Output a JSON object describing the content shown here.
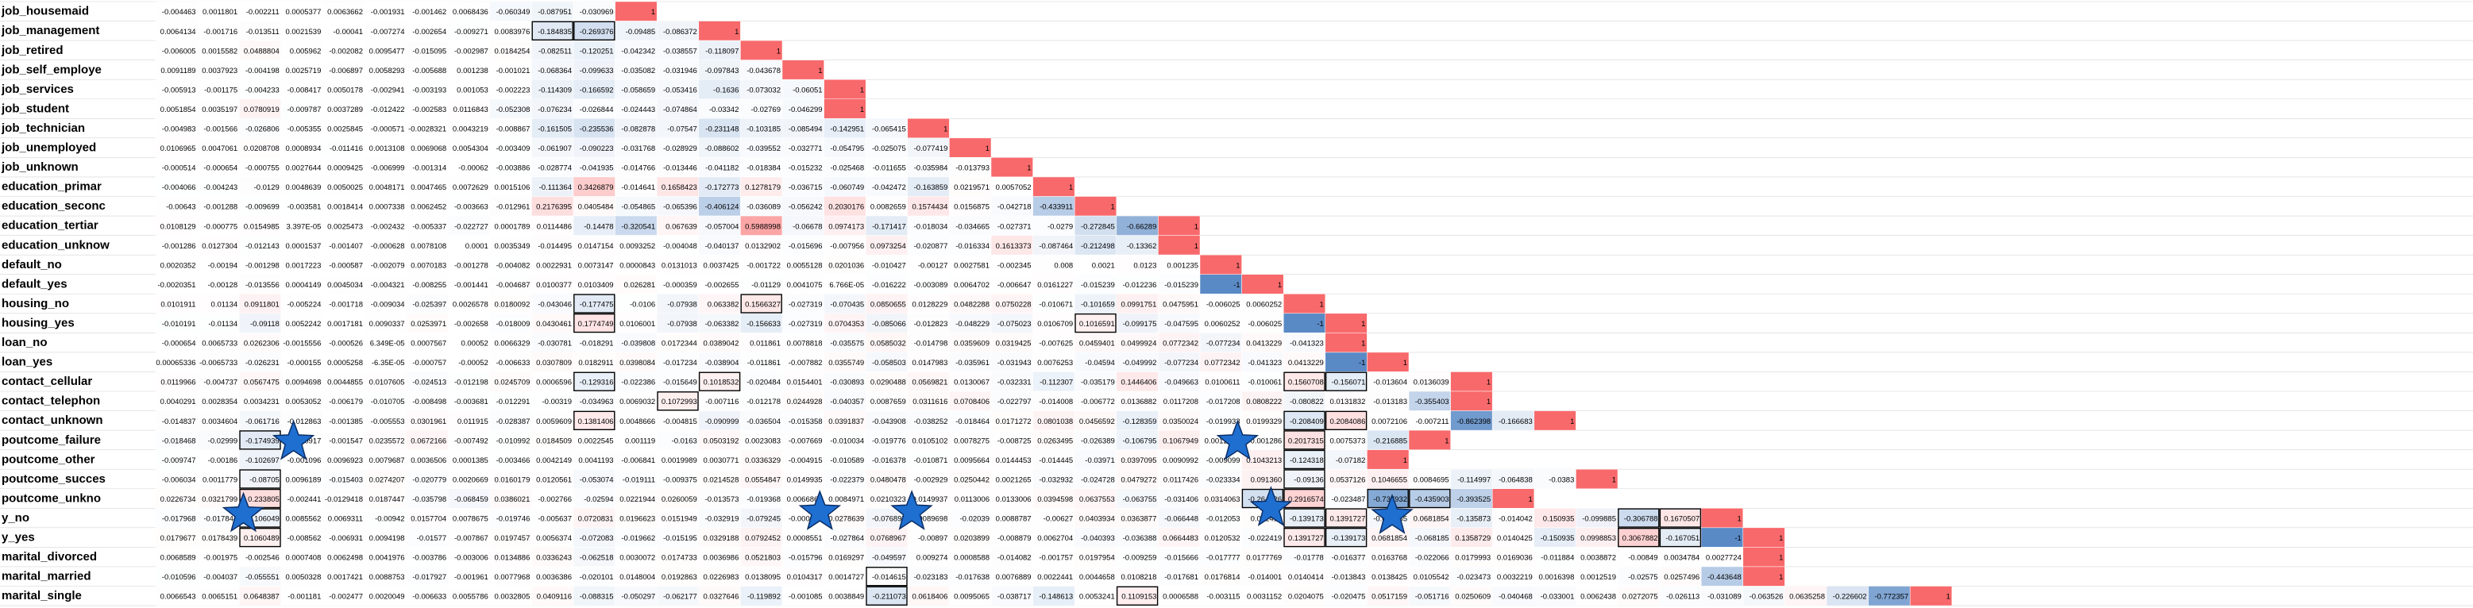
{
  "chart_data": {
    "type": "heatmap",
    "description_scope": "lower-triangular correlation matrix of one-hot encoded variables; only the last 33 columns (job_housemaid onward) are visible",
    "row_labels": [
      "job_housemaid",
      "job_management",
      "job_retired",
      "job_self_employe",
      "job_services",
      "job_student",
      "job_technician",
      "job_unemployed",
      "job_unknown",
      "education_primar",
      "education_seconc",
      "education_tertiar",
      "education_unknow",
      "default_no",
      "default_yes",
      "housing_no",
      "housing_yes",
      "loan_no",
      "loan_yes",
      "contact_cellular",
      "contact_telephon",
      "contact_unknown",
      "poutcome_failure",
      "poutcome_other",
      "poutcome_succes",
      "poutcome_unkno",
      "y_no",
      "y_yes",
      "marital_divorced",
      "marital_married",
      "marital_single"
    ],
    "values": [
      [
        "-0.004463",
        "0.0011801",
        "-0.002211",
        "0.0005377",
        "0.0063662",
        "-0.001931",
        "-0.001462",
        "0.0068436",
        "-0.060349",
        "-0.087951",
        "-0.030969",
        "1"
      ],
      [
        "0.0064134",
        "-0.001716",
        "-0.013511",
        "0.0021539",
        "-0.00041",
        "-0.007274",
        "-0.002654",
        "-0.009271",
        "0.0083976",
        "-0.184835",
        "-0.269376",
        "-0.09485",
        "-0.086372",
        "1"
      ],
      [
        "-0.006005",
        "0.0015582",
        "0.0488804",
        "0.005962",
        "-0.002082",
        "0.0095477",
        "-0.015095",
        "-0.002987",
        "0.0184254",
        "-0.082511",
        "-0.120251",
        "-0.042342",
        "-0.038557",
        "-0.118097",
        "1"
      ],
      [
        "0.0091189",
        "0.0037923",
        "-0.004198",
        "0.0025719",
        "-0.006897",
        "0.0058293",
        "-0.005688",
        "0.001238",
        "-0.001021",
        "-0.068364",
        "-0.099633",
        "-0.035082",
        "-0.031946",
        "-0.097843",
        "-0.043678",
        "1"
      ],
      [
        "-0.005913",
        "-0.001175",
        "-0.004233",
        "-0.008417",
        "0.0050178",
        "-0.002941",
        "-0.003193",
        "0.001053",
        "-0.002223",
        "-0.114309",
        "-0.166592",
        "-0.058659",
        "-0.053416",
        "-0.1636",
        "-0.073032",
        "-0.06051",
        "1"
      ],
      [
        "0.0051854",
        "0.0035197",
        "0.0780919",
        "-0.009787",
        "0.0037289",
        "-0.012422",
        "-0.002583",
        "0.0116843",
        "-0.052308",
        "-0.076234",
        "-0.026844",
        "-0.024443",
        "-0.074864",
        "-0.03342",
        "-0.02769",
        "-0.046299",
        "1"
      ],
      [
        "-0.004983",
        "-0.001566",
        "-0.026806",
        "-0.005355",
        "0.0025845",
        "-0.000571",
        "-0.0028321",
        "0.0043219",
        "-0.008867",
        "-0.161505",
        "-0.235536",
        "-0.082878",
        "-0.07547",
        "-0.231148",
        "-0.103185",
        "-0.085494",
        "-0.142951",
        "-0.065415",
        "1"
      ],
      [
        "0.0106965",
        "0.0047061",
        "0.0208708",
        "0.0008934",
        "-0.011416",
        "0.0013108",
        "0.0069068",
        "0.0054304",
        "-0.003409",
        "-0.061907",
        "-0.090223",
        "-0.031768",
        "-0.028929",
        "-0.088602",
        "-0.039552",
        "-0.032771",
        "-0.054795",
        "-0.025075",
        "-0.077419",
        "1"
      ],
      [
        "-0.000514",
        "-0.000654",
        "-0.000755",
        "0.0027644",
        "0.0009425",
        "-0.006999",
        "-0.001314",
        "-0.00062",
        "-0.003886",
        "-0.028774",
        "-0.041935",
        "-0.014766",
        "-0.013446",
        "-0.041182",
        "-0.018384",
        "-0.015232",
        "-0.025468",
        "-0.011655",
        "-0.035984",
        "-0.013793",
        "1"
      ],
      [
        "-0.004066",
        "-0.004243",
        "-0.0129",
        "0.0048639",
        "0.0050025",
        "0.0048171",
        "0.0047465",
        "0.0072629",
        "0.0015106",
        "-0.111364",
        "0.3426879",
        "-0.014641",
        "0.1658423",
        "-0.172773",
        "0.1278179",
        "-0.036715",
        "-0.060749",
        "-0.042472",
        "-0.163859",
        "0.0219571",
        "0.0057052",
        "1"
      ],
      [
        "-0.00643",
        "-0.001288",
        "-0.009699",
        "-0.003581",
        "0.0018414",
        "0.0007338",
        "0.0062452",
        "-0.003663",
        "-0.012961",
        "0.2176395",
        "0.0405484",
        "-0.054865",
        "-0.065396",
        "-0.406124",
        "-0.036089",
        "-0.056242",
        "0.2030176",
        "0.0082659",
        "0.1574434",
        "0.0156875",
        "-0.042718",
        "-0.433911",
        "1"
      ],
      [
        "0.0108129",
        "-0.000775",
        "0.0154985",
        "3.397E-05",
        "0.0025473",
        "-0.002432",
        "-0.005337",
        "-0.022727",
        "0.0001789",
        "0.0114486",
        "-0.14478",
        "-0.320541",
        "0.067639",
        "-0.057004",
        "0.5988998",
        "-0.06678",
        "0.0974173",
        "-0.171417",
        "-0.018034",
        "-0.034665",
        "-0.027371",
        "-0.0279",
        "-0.272845",
        "-0.66289",
        "1"
      ],
      [
        "-0.001286",
        "0.0127304",
        "-0.012143",
        "0.0001537",
        "-0.001407",
        "-0.000628",
        "0.0078108",
        "0.0001",
        "0.0035349",
        "-0.014495",
        "0.0147154",
        "0.0093252",
        "-0.004048",
        "-0.040137",
        "0.0132902",
        "-0.015696",
        "-0.007956",
        "0.0973254",
        "-0.020877",
        "-0.016334",
        "0.1613373",
        "-0.087464",
        "-0.212498",
        "-0.13362",
        "1"
      ],
      [
        "0.0020352",
        "-0.00194",
        "-0.001298",
        "0.0017223",
        "-0.000587",
        "-0.002079",
        "0.0070183",
        "-0.001278",
        "-0.004082",
        "0.0022931",
        "0.0073147",
        "0.0000843",
        "0.0131013",
        "0.0037425",
        "-0.001722",
        "0.0055128",
        "0.0201036",
        "-0.010427",
        "-0.00127",
        "0.0027581",
        "-0.002345",
        "0.008",
        "0.0021",
        "0.0123",
        "0.001235",
        "1"
      ],
      [
        "-0.0020351",
        "-0.00128",
        "-0.013556",
        "0.0004149",
        "0.0045034",
        "-0.004321",
        "-0.008255",
        "-0.001441",
        "-0.004687",
        "0.0100377",
        "0.0103409",
        "0.026281",
        "-0.000359",
        "-0.002655",
        "-0.01129",
        "0.0041075",
        "6.766E-05",
        "-0.016222",
        "-0.003089",
        "0.0064702",
        "-0.006647",
        "0.0161227",
        "-0.015239",
        "-0.012236",
        "-0.015239",
        "-1",
        "1"
      ],
      [
        "0.0101911",
        "0.01134",
        "0.0911801",
        "-0.005224",
        "-0.001718",
        "-0.009034",
        "-0.025397",
        "0.0026578",
        "0.0180092",
        "-0.043046",
        "-0.177475",
        "-0.0106",
        "-0.07938",
        "0.063382",
        "0.1566327",
        "-0.027319",
        "-0.070435",
        "0.0850655",
        "0.0128229",
        "0.0482288",
        "0.0750228",
        "-0.010671",
        "-0.101659",
        "0.0991751",
        "0.0475951",
        "-0.006025",
        "0.0060252",
        "1"
      ],
      [
        "-0.010191",
        "-0.01134",
        "-0.09118",
        "0.0052242",
        "0.0017181",
        "0.0090337",
        "0.0253971",
        "-0.002658",
        "-0.018009",
        "0.0430461",
        "0.1774749",
        "0.0106001",
        "-0.07938",
        "-0.063382",
        "-0.156633",
        "-0.027319",
        "0.0704353",
        "-0.085066",
        "-0.012823",
        "-0.048229",
        "-0.075023",
        "0.0106709",
        "0.1016591",
        "-0.099175",
        "-0.047595",
        "0.0060252",
        "-0.006025",
        "-1",
        "1"
      ],
      [
        "-0.000654",
        "0.0065733",
        "0.0262306",
        "-0.0015556",
        "-0.000526",
        "6.349E-05",
        "0.0007567",
        "0.00052",
        "0.0066329",
        "-0.030781",
        "-0.018291",
        "-0.039808",
        "0.0172344",
        "0.0389042",
        "0.011861",
        "0.0078818",
        "-0.035575",
        "0.0585032",
        "-0.014798",
        "0.0359609",
        "0.0319425",
        "-0.007625",
        "0.0459401",
        "0.0499924",
        "0.0772342",
        "-0.077234",
        "0.0413229",
        "-0.041323",
        "1"
      ],
      [
        "0.00065336",
        "-0.0065733",
        "-0.026231",
        "-0.000155",
        "0.0005258",
        "-6.35E-05",
        "-0.000757",
        "-0.00052",
        "-0.006633",
        "0.0307809",
        "0.0182911",
        "0.0398084",
        "-0.017234",
        "-0.038904",
        "-0.011861",
        "-0.007882",
        "0.0355749",
        "-0.058503",
        "0.0147983",
        "-0.035961",
        "-0.031943",
        "0.0076253",
        "-0.04594",
        "-0.049992",
        "-0.077234",
        "0.0772342",
        "-0.041323",
        "0.0413229",
        "-1",
        "1"
      ],
      [
        "0.0119966",
        "-0.004737",
        "0.0567475",
        "0.0094698",
        "0.0044855",
        "0.0107605",
        "-0.024513",
        "-0.012198",
        "0.0245709",
        "0.0006596",
        "-0.129316",
        "-0.022386",
        "-0.015649",
        "0.1018532",
        "-0.020484",
        "0.0154401",
        "-0.030893",
        "0.0290488",
        "0.0569821",
        "0.0130067",
        "-0.032331",
        "-0.112307",
        "-0.035179",
        "0.1446406",
        "-0.049663",
        "0.0100611",
        "-0.010061",
        "0.1560708",
        "-0.156071",
        "-0.013604",
        "0.0136039",
        "1"
      ],
      [
        "0.0040291",
        "0.0028354",
        "0.0034231",
        "0.0053052",
        "-0.006179",
        "-0.010705",
        "-0.008498",
        "-0.003681",
        "-0.012291",
        "-0.00319",
        "-0.034963",
        "0.0069032",
        "0.1072993",
        "-0.007116",
        "-0.012178",
        "0.0244928",
        "-0.040357",
        "0.0087659",
        "0.0311616",
        "0.0708406",
        "-0.022797",
        "-0.014008",
        "-0.006772",
        "0.0136882",
        "0.0117208",
        "-0.017208",
        "0.0808222",
        "-0.080822",
        "0.0131832",
        "-0.013183",
        "-0.355403",
        "1"
      ],
      [
        "-0.014837",
        "0.0034604",
        "-0.061716",
        "-0.012863",
        "-0.001385",
        "-0.005553",
        "0.0301961",
        "0.011915",
        "-0.028387",
        "0.0059609",
        "0.1381406",
        "0.0048666",
        "-0.004815",
        "-0.090999",
        "-0.036504",
        "-0.015358",
        "0.0391837",
        "-0.043908",
        "-0.038252",
        "-0.018464",
        "0.0171272",
        "0.0801038",
        "0.0456592",
        "-0.128359",
        "0.0350024",
        "-0.019933",
        "0.0199329",
        "-0.208409",
        "0.2084086",
        "0.0072106",
        "-0.007211",
        "-0.862398",
        "-0.166683",
        "1"
      ],
      [
        "-0.018468",
        "-0.02999",
        "-0.174939",
        "-0.000917",
        "-0.001547",
        "0.0235572",
        "0.0672166",
        "-0.007492",
        "-0.010992",
        "0.0184509",
        "0.0022545",
        "0.001119",
        "-0.0163",
        "0.0503192",
        "0.0023083",
        "-0.007669",
        "-0.010034",
        "-0.019776",
        "0.0105102",
        "0.0078275",
        "-0.008725",
        "0.0263495",
        "-0.026389",
        "-0.106795",
        "0.1067949",
        "0.0012859",
        "-0.001286",
        "0.2017315",
        "0.0075373",
        "-0.216885",
        "1"
      ],
      [
        "-0.009747",
        "-0.00186",
        "-0.102697",
        "-0.001096",
        "0.0096923",
        "0.0079687",
        "0.0036506",
        "0.0001385",
        "-0.003466",
        "0.0042149",
        "0.0041193",
        "-0.006841",
        "0.0019989",
        "0.0030771",
        "0.0336329",
        "-0.004915",
        "-0.010589",
        "-0.016378",
        "-0.010871",
        "0.0095664",
        "0.0144453",
        "-0.014445",
        "-0.03971",
        "0.0397095",
        "0.0090992",
        "-0.009099",
        "0.1043213",
        "-0.124318",
        "-0.07182",
        "1"
      ],
      [
        "-0.006034",
        "0.0011779",
        "-0.08705",
        "0.0096189",
        "-0.015403",
        "0.0274207",
        "-0.020779",
        "0.0020669",
        "0.0160179",
        "0.0120561",
        "-0.053074",
        "-0.019111",
        "-0.009375",
        "0.0214528",
        "0.0554847",
        "0.0149935",
        "-0.022379",
        "0.0480478",
        "-0.002929",
        "0.0250442",
        "0.0021265",
        "-0.032932",
        "-0.024728",
        "0.0479272",
        "0.0117426",
        "-0.023334",
        "0.091360",
        "-0.09136",
        "0.0537126",
        "0.1046655",
        "0.0084695",
        "-0.114997",
        "-0.064838",
        "-0.0383",
        "1"
      ],
      [
        "0.0226734",
        "0.0321799",
        "0.233805",
        "-0.002441",
        "-0.0129418",
        "0.0187447",
        "-0.035798",
        "-0.068459",
        "0.0386021",
        "-0.002766",
        "-0.02594",
        "0.0221944",
        "0.0260059",
        "-0.013573",
        "-0.019368",
        "0.0066865",
        "0.0084971",
        "0.0210323",
        "0.0149937",
        "0.0113006",
        "0.0133006",
        "0.0394598",
        "0.0637553",
        "-0.063755",
        "-0.031406",
        "0.0314063",
        "-0.264426",
        "0.2916574",
        "-0.023487",
        "-0.737932",
        "-0.435903",
        "-0.393525",
        "1"
      ],
      [
        "-0.017968",
        "-0.017844",
        "-0.106049",
        "0.0085562",
        "0.0069311",
        "-0.00942",
        "0.0157704",
        "0.0078675",
        "-0.019746",
        "-0.005637",
        "0.0720831",
        "0.0196623",
        "0.0151949",
        "-0.032919",
        "-0.079245",
        "-0.000855",
        "0.0278639",
        "-0.076897",
        "0.0089698",
        "-0.02039",
        "0.0088787",
        "-0.00627",
        "0.0403934",
        "0.0363877",
        "-0.066448",
        "-0.012053",
        "0.022419",
        "-0.139173",
        "0.1391727",
        "-0.068185",
        "0.0681854",
        "-0.135873",
        "-0.014042",
        "0.150935",
        "-0.099885",
        "-0.306788",
        "0.1670507",
        "1"
      ],
      [
        "0.0179677",
        "0.0178439",
        "0.1060489",
        "-0.008562",
        "-0.006931",
        "0.0094198",
        "-0.01577",
        "-0.007867",
        "0.0197457",
        "0.0056374",
        "-0.072083",
        "-0.019662",
        "-0.015195",
        "0.0329188",
        "0.0792452",
        "0.0008551",
        "-0.027864",
        "0.0768967",
        "-0.00897",
        "0.0203899",
        "-0.008879",
        "0.0062704",
        "-0.040393",
        "-0.036388",
        "0.0664483",
        "0.0120532",
        "-0.022419",
        "0.1391727",
        "-0.139173",
        "0.0681854",
        "-0.068185",
        "0.1358729",
        "0.0140425",
        "-0.150935",
        "0.0998853",
        "0.3067882",
        "-0.167051",
        "-1",
        "1"
      ],
      [
        "0.0068589",
        "-0.001975",
        "-0.002546",
        "0.0007408",
        "0.0062498",
        "0.0041976",
        "-0.003786",
        "-0.003006",
        "0.0134886",
        "0.0336243",
        "-0.062518",
        "0.0030072",
        "0.0174733",
        "0.0036986",
        "0.0521803",
        "-0.015796",
        "0.0169297",
        "-0.049597",
        "0.009274",
        "0.0008588",
        "-0.014082",
        "-0.001757",
        "0.0197954",
        "-0.009259",
        "-0.015666",
        "-0.017777",
        "0.0177769",
        "-0.01778",
        "-0.016377",
        "0.0163768",
        "-0.022066",
        "0.0179993",
        "0.0169036",
        "-0.011884",
        "0.0038872",
        "-0.00849",
        "0.0034784",
        "0.0027724",
        "1"
      ],
      [
        "-0.010596",
        "-0.004037",
        "-0.055551",
        "0.0050328",
        "0.0017421",
        "0.0088753",
        "-0.017927",
        "-0.001961",
        "0.0077968",
        "0.0036386",
        "-0.020101",
        "0.0148004",
        "0.0192863",
        "0.0226983",
        "0.0138095",
        "0.0104317",
        "0.0014727",
        "-0.014615",
        "-0.023183",
        "-0.017638",
        "0.0076889",
        "0.0022441",
        "0.0044658",
        "0.0108218",
        "-0.017681",
        "0.0176814",
        "-0.014001",
        "0.0140414",
        "-0.013843",
        "0.0138425",
        "0.0105542",
        "-0.023473",
        "0.0032219",
        "0.0016398",
        "0.0012519",
        "-0.02575",
        "0.0257496",
        "-0.443648",
        "1"
      ],
      [
        "0.0066543",
        "0.0065151",
        "0.0648387",
        "-0.001181",
        "-0.002477",
        "0.0020049",
        "-0.006633",
        "0.0055786",
        "0.0032805",
        "0.0409116",
        "-0.088315",
        "-0.050297",
        "-0.062177",
        "0.0327646",
        "-0.119892",
        "-0.001085",
        "0.0038849",
        "-0.211073",
        "0.0618406",
        "0.0095065",
        "-0.038717",
        "-0.148613",
        "0.0053241",
        "0.1109153",
        "0.0006588",
        "-0.003115",
        "0.0031152",
        "0.0204075",
        "-0.020475",
        "0.0517159",
        "-0.051716",
        "0.0250609",
        "-0.040468",
        "-0.033001",
        "0.0062438",
        "0.0272075",
        "-0.026113",
        "-0.031089",
        "-0.063526",
        "0.0635258",
        "-0.226602",
        "-0.772357",
        "1"
      ]
    ],
    "highlighted_row_label": "poutcome_failure",
    "colors": {
      "positive": "#f8696b",
      "negative": "#5a8ac6",
      "neutral": "#ffffff",
      "text": "#000000",
      "grid": "#d4d4d4",
      "star": "#1f6fd1"
    },
    "marker": "star-icon"
  }
}
